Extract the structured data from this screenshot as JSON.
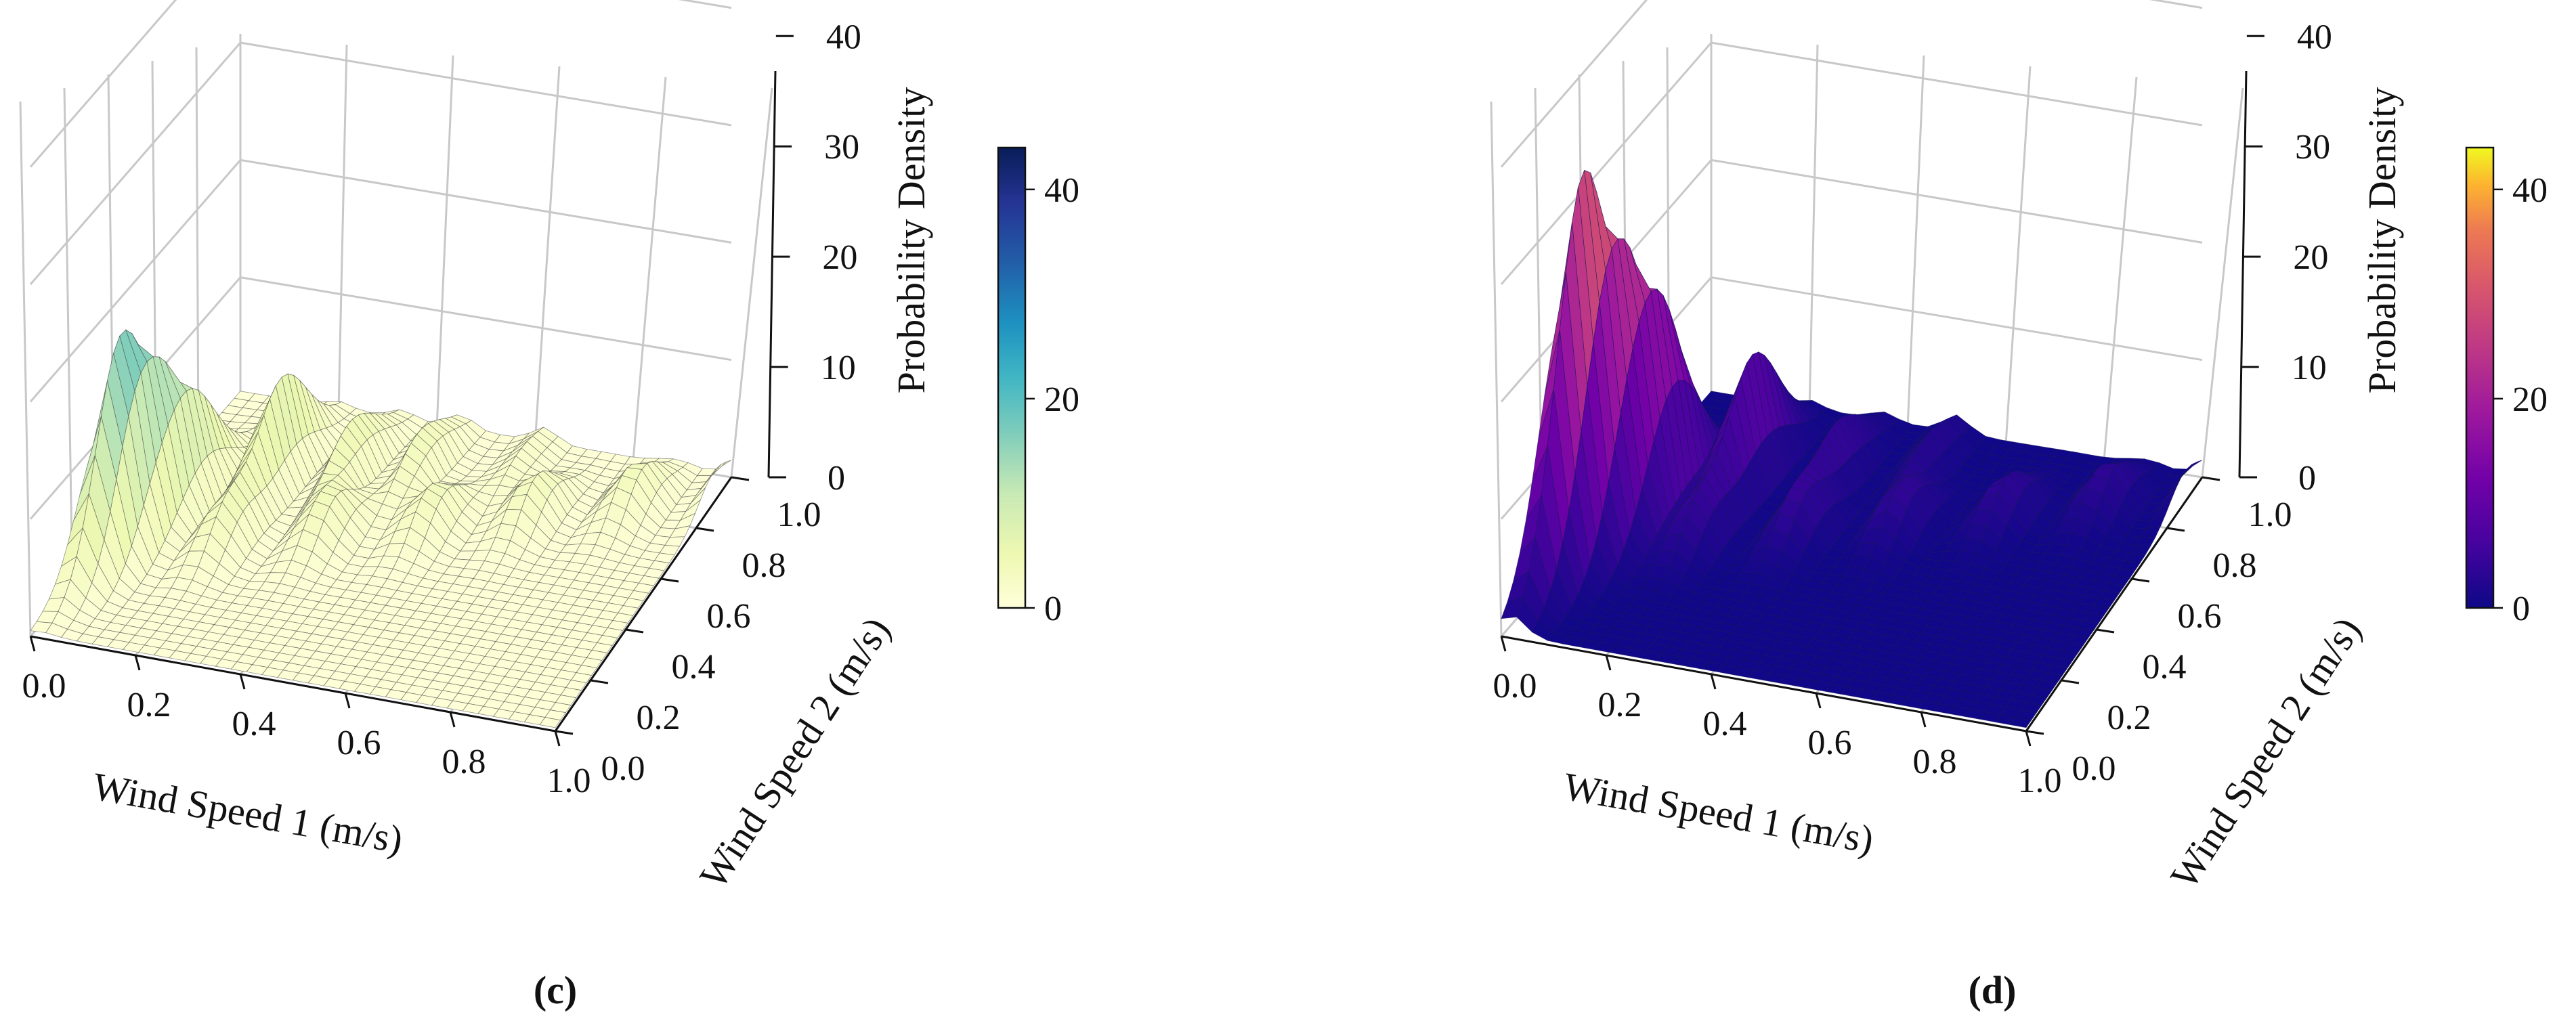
{
  "figure": {
    "panels": [
      {
        "key": "c",
        "caption": "(c)",
        "cbar_ticks": [
          "0",
          "20",
          "40"
        ],
        "colormap": "ygb"
      },
      {
        "key": "d",
        "caption": "(d)",
        "cbar_ticks": [
          "0",
          "20",
          "40"
        ],
        "colormap": "plasma"
      }
    ]
  },
  "chart_data": [
    {
      "type": "surface3d",
      "panel": "c",
      "xlabel": "Wind Speed 1 (m/s)",
      "ylabel": "Wind Speed 2 (m/s)",
      "zlabel": "Probability Density",
      "xlim": [
        0.0,
        1.0
      ],
      "ylim": [
        0.0,
        1.0
      ],
      "zlim": [
        0,
        45
      ],
      "xticks": [
        "0.0",
        "0.2",
        "0.4",
        "0.6",
        "0.8",
        "1.0"
      ],
      "yticks": [
        "0.0",
        "0.2",
        "0.4",
        "0.6",
        "0.8",
        "1.0"
      ],
      "zticks": [
        "0",
        "10",
        "20",
        "30",
        "40"
      ],
      "colorbar": {
        "min": 0,
        "max": 44,
        "ticks": [
          0,
          20,
          40
        ],
        "colormap": "YlGnBu"
      },
      "peaks": [
        {
          "x": 0.02,
          "y": 0.35,
          "z": 11
        },
        {
          "x": 0.05,
          "y": 0.45,
          "z": 9
        },
        {
          "x": 0.09,
          "y": 0.55,
          "z": 8
        },
        {
          "x": 0.2,
          "y": 0.7,
          "z": 9
        },
        {
          "x": 0.33,
          "y": 0.75,
          "z": 5
        },
        {
          "x": 0.45,
          "y": 0.8,
          "z": 4
        },
        {
          "x": 0.62,
          "y": 0.88,
          "z": 2
        }
      ]
    },
    {
      "type": "surface3d",
      "panel": "d",
      "xlabel": "Wind Speed 1 (m/s)",
      "ylabel": "Wind Speed 2 (m/s)",
      "zlabel": "Probability Density",
      "xlim": [
        0.0,
        1.0
      ],
      "ylim": [
        0.0,
        1.0
      ],
      "zlim": [
        0,
        45
      ],
      "xticks": [
        "0.0",
        "0.2",
        "0.4",
        "0.6",
        "0.8",
        "1.0"
      ],
      "yticks": [
        "0.0",
        "0.2",
        "0.4",
        "0.6",
        "0.8",
        "1.0"
      ],
      "zticks": [
        "0",
        "10",
        "20",
        "30",
        "40"
      ],
      "colorbar": {
        "min": 0,
        "max": 44,
        "ticks": [
          0,
          20,
          40
        ],
        "colormap": "plasma"
      },
      "peaks": [
        {
          "x": 0.02,
          "y": 0.3,
          "z": 27
        },
        {
          "x": 0.06,
          "y": 0.45,
          "z": 17
        },
        {
          "x": 0.1,
          "y": 0.55,
          "z": 13
        },
        {
          "x": 0.2,
          "y": 0.7,
          "z": 11
        },
        {
          "x": 0.35,
          "y": 0.75,
          "z": 5
        },
        {
          "x": 0.5,
          "y": 0.85,
          "z": 3
        }
      ]
    }
  ]
}
